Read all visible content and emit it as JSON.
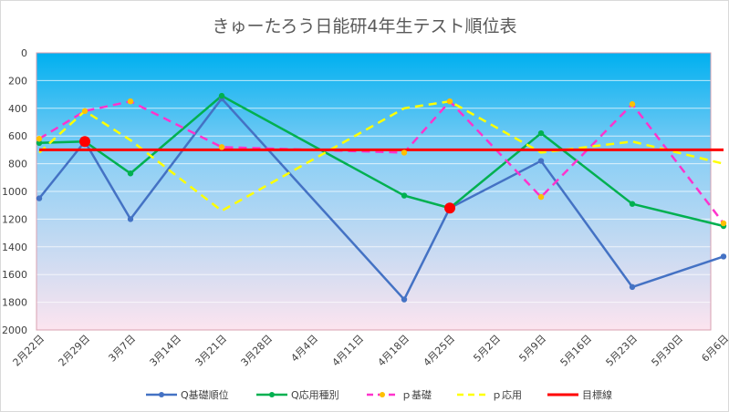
{
  "chart_data": {
    "type": "line",
    "title": "きゅーたろう日能研4年生テスト順位表",
    "y_reversed": true,
    "ylim": [
      0,
      2000
    ],
    "yticks": [
      "0",
      "200",
      "400",
      "600",
      "800",
      "1000",
      "1200",
      "1400",
      "1600",
      "1800",
      "2000"
    ],
    "categories": [
      "2月22日",
      "2月29日",
      "3月7日",
      "3月14日",
      "3月21日",
      "3月28日",
      "4月4日",
      "4月11日",
      "4月18日",
      "4月25日",
      "5月2日",
      "5月9日",
      "5月16日",
      "5月23日",
      "5月30日",
      "6月6日"
    ],
    "legend_position": "bottom",
    "grid": true,
    "series": [
      {
        "name": "Q基礎順位",
        "color": "#4472c4",
        "style": "solid",
        "marker": true,
        "points": [
          [
            0,
            1050
          ],
          [
            1,
            640
          ],
          [
            2,
            1200
          ],
          [
            4,
            330
          ],
          [
            8,
            1780
          ],
          [
            9,
            1120
          ],
          [
            11,
            780
          ],
          [
            13,
            1690
          ],
          [
            15,
            1470
          ]
        ]
      },
      {
        "name": "Q応用種別",
        "color": "#00b050",
        "style": "solid",
        "marker": true,
        "points": [
          [
            0,
            650
          ],
          [
            1,
            640
          ],
          [
            2,
            870
          ],
          [
            4,
            310
          ],
          [
            8,
            1030
          ],
          [
            9,
            1120
          ],
          [
            11,
            580
          ],
          [
            13,
            1090
          ],
          [
            15,
            1250
          ]
        ]
      },
      {
        "name": "ｐ基礎",
        "color": "#ff33cc",
        "style": "dashed",
        "marker": true,
        "marker_color": "#ffc000",
        "points": [
          [
            0,
            620
          ],
          [
            1,
            420
          ],
          [
            2,
            350
          ],
          [
            4,
            680
          ],
          [
            8,
            720
          ],
          [
            9,
            350
          ],
          [
            11,
            1040
          ],
          [
            13,
            370
          ],
          [
            15,
            1230
          ]
        ]
      },
      {
        "name": "ｐ応用",
        "color": "#ffff00",
        "style": "dashed",
        "marker": false,
        "points": [
          [
            0,
            720
          ],
          [
            1,
            420
          ],
          [
            2,
            630
          ],
          [
            4,
            1140
          ],
          [
            8,
            400
          ],
          [
            9,
            350
          ],
          [
            11,
            720
          ],
          [
            13,
            640
          ],
          [
            15,
            800
          ]
        ]
      },
      {
        "name": "目標線",
        "color": "#ff0000",
        "style": "solid",
        "marker": false,
        "width": 3,
        "points": [
          [
            0,
            700
          ],
          [
            15,
            700
          ]
        ]
      }
    ],
    "highlights": [
      {
        "x": 1,
        "y": 640,
        "color": "#ff0000"
      },
      {
        "x": 9,
        "y": 1120,
        "color": "#ff0000"
      }
    ]
  }
}
